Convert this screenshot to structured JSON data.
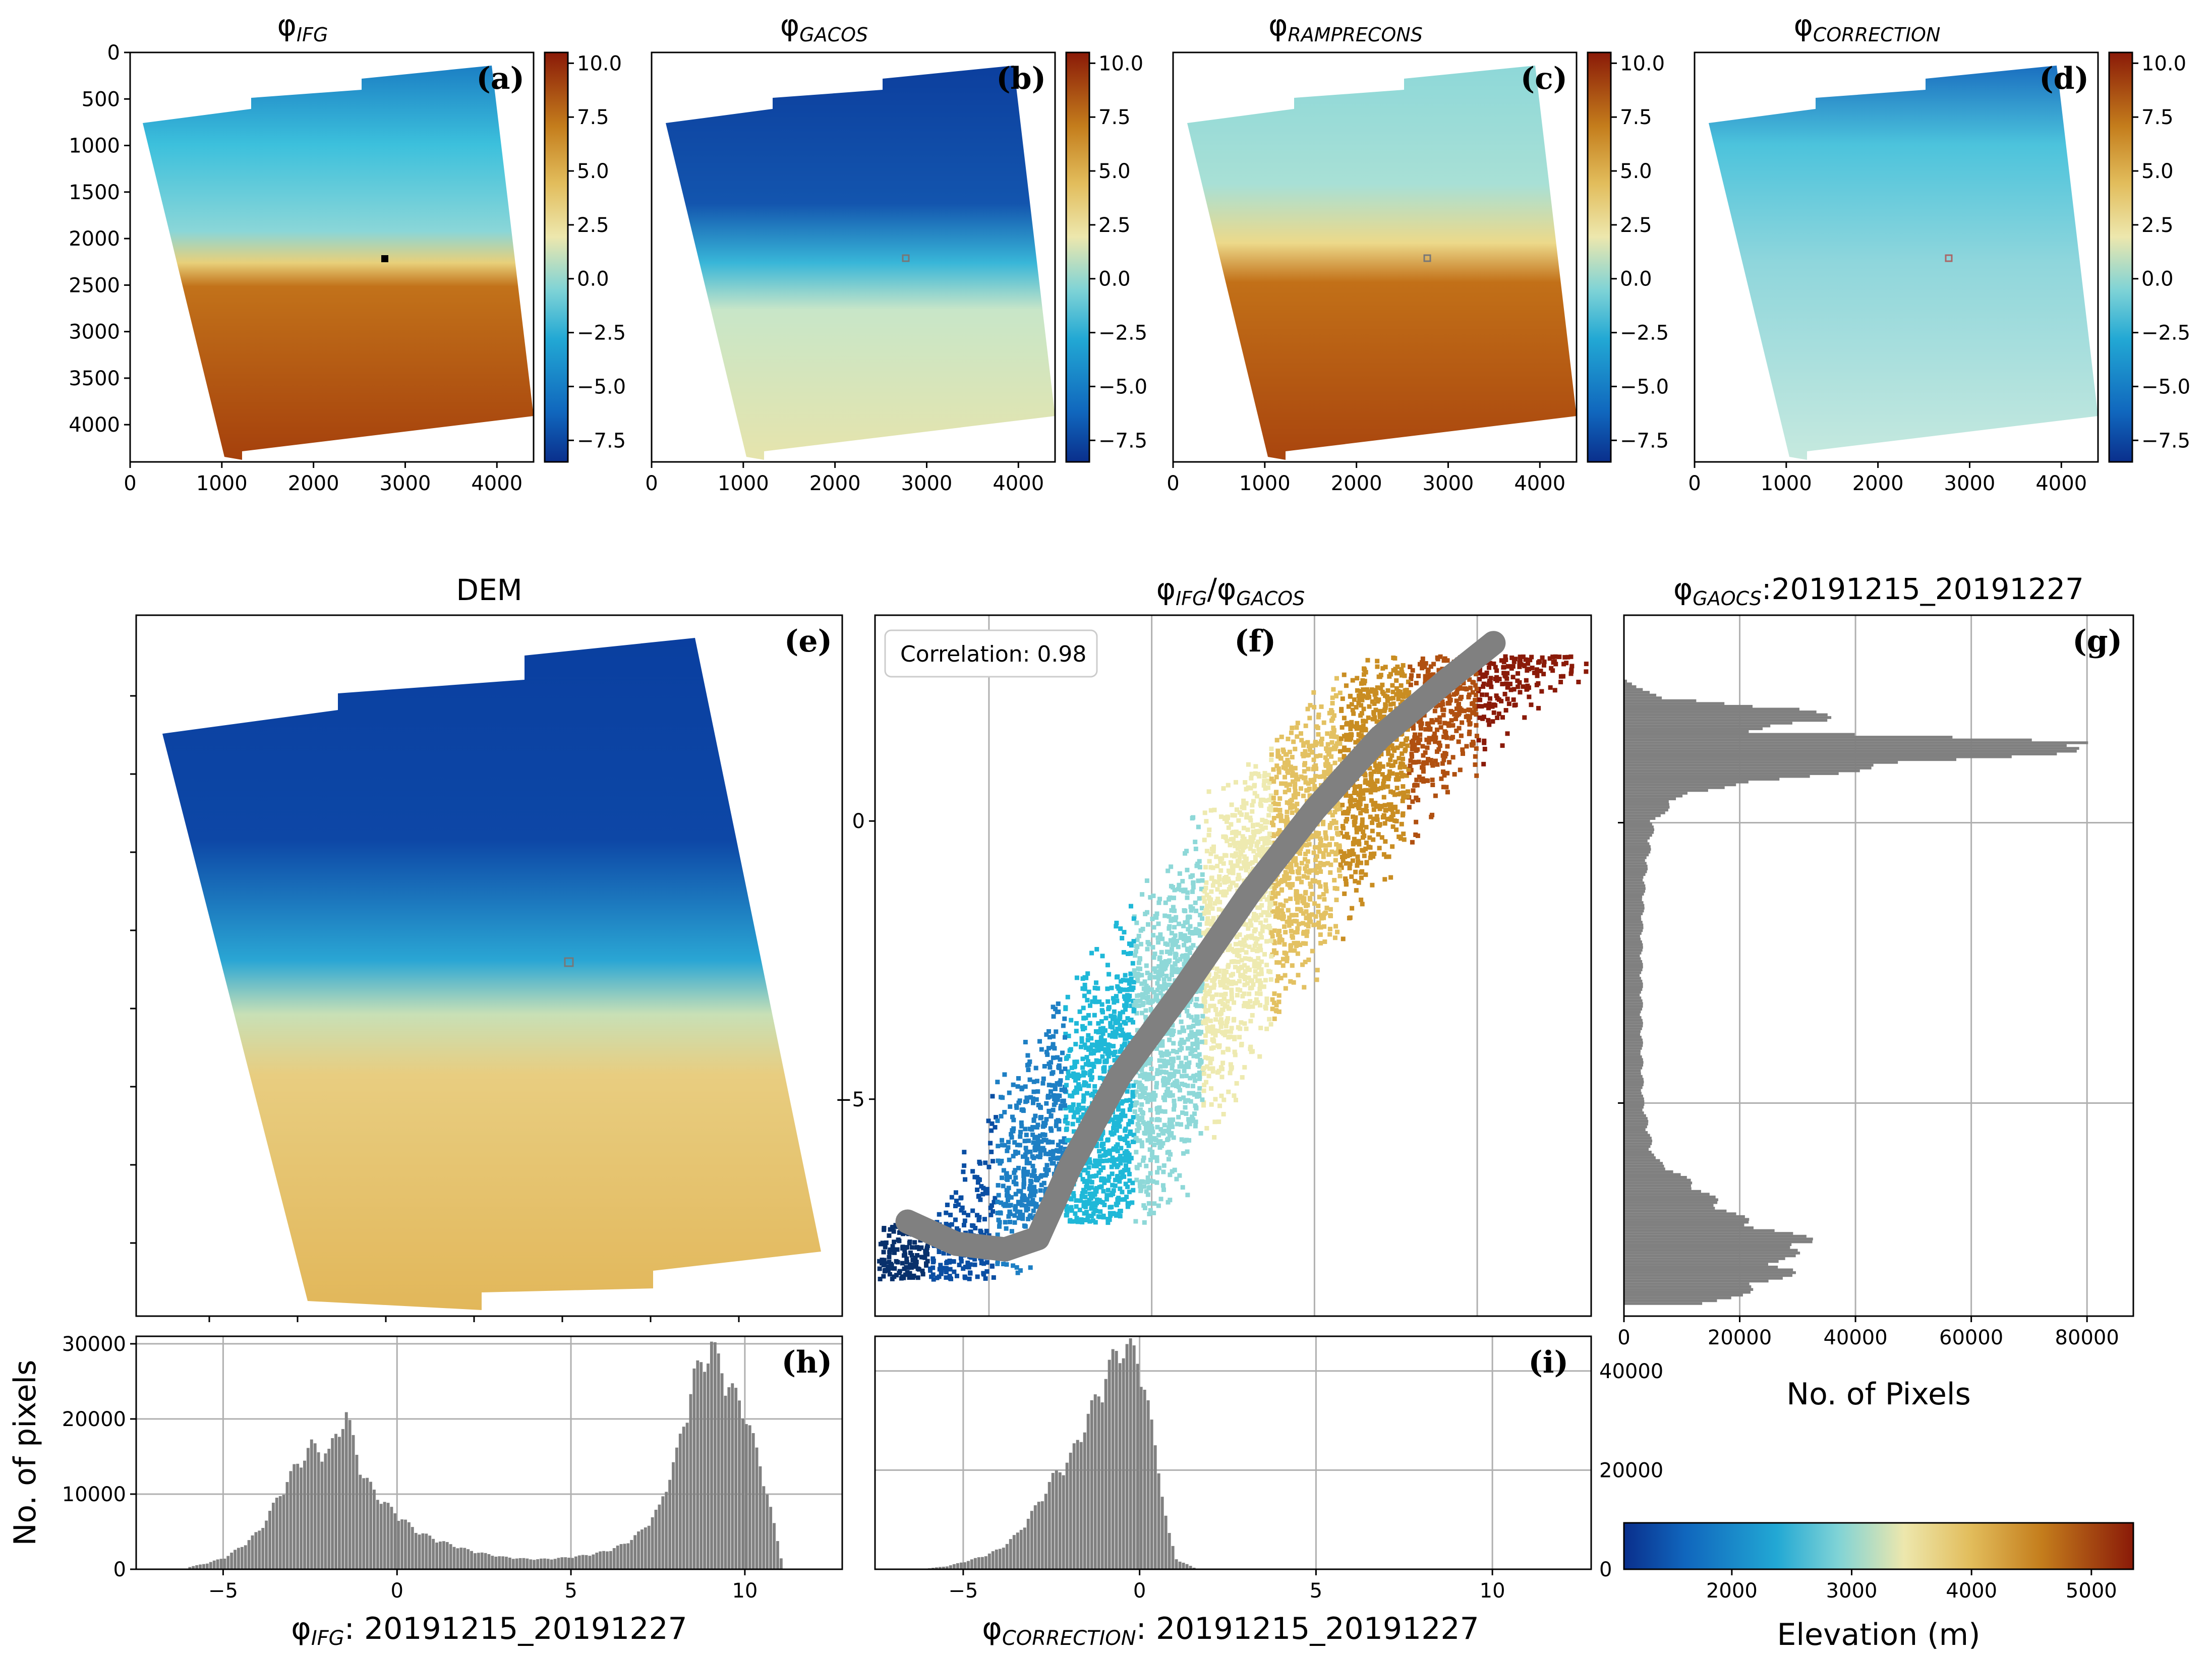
{
  "colors": {
    "colormap": [
      "#08306b",
      "#0a4ea3",
      "#1e7fc4",
      "#1fb8d8",
      "#8ed8d8",
      "#eeeab0",
      "#e3c162",
      "#c98d22",
      "#b05010",
      "#8a1a08"
    ],
    "dem": [
      "#0a3fa0",
      "#1a6fc0",
      "#2fb5d5",
      "#a8dcc8",
      "#efe2a0",
      "#e1b960",
      "#c88a2e",
      "#8a2a10"
    ],
    "bar": "#808080",
    "scatter_line": "#808080"
  },
  "panels_top": [
    {
      "id": "a",
      "title": "φ",
      "sub": "IFG",
      "label": "(a)"
    },
    {
      "id": "b",
      "title": "φ",
      "sub": "GACOS",
      "label": "(b)"
    },
    {
      "id": "c",
      "title": "φ",
      "sub": "RAMPRECONS",
      "label": "(c)"
    },
    {
      "id": "d",
      "title": "φ",
      "sub": "CORRECTION",
      "label": "(d)"
    }
  ],
  "map_axes": {
    "x_ticks": [
      "0",
      "1000",
      "2000",
      "3000",
      "4000"
    ],
    "y_ticks": [
      "0",
      "500",
      "1000",
      "1500",
      "2000",
      "2500",
      "3000",
      "3500",
      "4000"
    ],
    "xlim": [
      0,
      4400
    ],
    "ylim": [
      0,
      4400
    ]
  },
  "colorbar": {
    "ticks": [
      "10.0",
      "7.5",
      "5.0",
      "2.5",
      "0.0",
      "−2.5",
      "−5.0",
      "−7.5"
    ],
    "range": [
      -8.5,
      10.5
    ]
  },
  "dem_panel": {
    "title": "DEM",
    "label": "(e)"
  },
  "scatter_panel": {
    "title": "φ",
    "title_sub1": "IFG",
    "title_sep": "/φ",
    "title_sub2": "GACOS",
    "label": "(f)",
    "correlation_text": "Correlation: 0.98",
    "y_ticks": [
      "0",
      "−5"
    ],
    "x_ticks": [
      "−5",
      "0",
      "5",
      "10"
    ]
  },
  "hist_g": {
    "title": "φ",
    "title_sub": "GAOCS",
    "title_rest": ":20191215_20191227",
    "label": "(g)",
    "x_ticks": [
      "0",
      "20000",
      "40000",
      "60000",
      "80000"
    ],
    "xlabel": "No. of Pixels"
  },
  "hist_h": {
    "label": "(h)",
    "y_ticks": [
      "0",
      "10000",
      "20000",
      "30000"
    ],
    "x_ticks": [
      "−5",
      "0",
      "5",
      "10"
    ],
    "ylabel": "No. of pixels",
    "xlabel": "φ",
    "xlabel_sub": "IFG",
    "xlabel_rest": ": 20191215_20191227"
  },
  "hist_i": {
    "label": "(i)",
    "y_ticks": [
      "0",
      "20000",
      "40000"
    ],
    "x_ticks": [
      "−5",
      "0",
      "5",
      "10"
    ],
    "xlabel": "φ",
    "xlabel_sub": "CORRECTION",
    "xlabel_rest": ": 20191215_20191227"
  },
  "elevation_bar": {
    "ticks": [
      "2000",
      "3000",
      "4000",
      "5000"
    ],
    "label": "Elevation (m)",
    "range": [
      1100,
      5350
    ]
  },
  "chart_data": [
    {
      "type": "histogram",
      "id": "h",
      "title": "",
      "xlabel": "φIFG: 20191215_20191227",
      "ylabel": "No. of pixels",
      "xlim": [
        -7.5,
        12.8
      ],
      "ylim": [
        0,
        31000
      ],
      "x": [
        -6,
        -5.5,
        -5,
        -4.5,
        -4,
        -3.5,
        -3,
        -2.5,
        -2,
        -1.75,
        -1.5,
        -1.25,
        -1,
        -0.5,
        0,
        0.5,
        1,
        1.5,
        2,
        2.5,
        3,
        3.5,
        4,
        4.5,
        5,
        5.5,
        6,
        6.5,
        7,
        7.5,
        8,
        8.5,
        9,
        9.5,
        10,
        10.5,
        11
      ],
      "values": [
        300,
        800,
        1500,
        3000,
        5000,
        9000,
        13000,
        16000,
        15000,
        18000,
        20000,
        16000,
        12000,
        9000,
        7000,
        5000,
        4000,
        3200,
        2500,
        2000,
        1600,
        1400,
        1300,
        1400,
        1600,
        1900,
        2400,
        3300,
        5000,
        8000,
        15000,
        25000,
        29000,
        24000,
        20000,
        12000,
        1500
      ]
    },
    {
      "type": "histogram",
      "id": "i",
      "title": "",
      "xlabel": "φCORRECTION: 20191215_20191227",
      "ylabel": "",
      "xlim": [
        -7.5,
        12.8
      ],
      "ylim": [
        0,
        47000
      ],
      "x": [
        -6,
        -5.5,
        -5,
        -4.5,
        -4,
        -3.5,
        -3,
        -2.5,
        -2,
        -1.5,
        -1.25,
        -1,
        -0.75,
        -0.5,
        -0.25,
        0,
        0.25,
        0.5,
        0.75,
        1,
        1.5
      ],
      "values": [
        200,
        600,
        1500,
        2500,
        4000,
        7000,
        12000,
        18000,
        22000,
        30000,
        34000,
        38000,
        42000,
        44000,
        43000,
        40000,
        30000,
        20000,
        8000,
        2000,
        300
      ]
    },
    {
      "type": "histogram",
      "id": "g",
      "orientation": "horizontal",
      "title": "φGAOCS:20191215_20191227",
      "xlabel": "No. of Pixels",
      "xlim": [
        0,
        88000
      ],
      "ylim": [
        -8.8,
        3.7
      ],
      "y": [
        2.5,
        2.2,
        2.0,
        1.8,
        1.6,
        1.4,
        1.2,
        1.0,
        0.8,
        0.5,
        0.0,
        -1.0,
        -2.0,
        -3.0,
        -4.0,
        -5.0,
        -6.0,
        -6.5,
        -7.0,
        -7.2,
        -7.5,
        -7.8,
        -8.0,
        -8.2,
        -8.4,
        -8.6
      ],
      "values": [
        500,
        6000,
        30000,
        34000,
        20000,
        85000,
        68000,
        45000,
        30000,
        10000,
        5000,
        3500,
        3000,
        3000,
        3000,
        3200,
        5000,
        12000,
        18000,
        22000,
        32000,
        26000,
        28000,
        25000,
        20000,
        15000
      ]
    },
    {
      "type": "scatter",
      "id": "f",
      "title": "φIFG/φGACOS",
      "annotation": "Correlation: 0.98",
      "xlim": [
        -8.5,
        13.5
      ],
      "ylim": [
        -8.9,
        3.7
      ],
      "median_line": {
        "x": [
          -7.5,
          -6,
          -4.5,
          -3.5,
          -2.5,
          -1,
          1,
          3,
          5,
          7,
          9,
          10.5
        ],
        "y": [
          -7.2,
          -7.6,
          -7.7,
          -7.5,
          -6.2,
          -4.6,
          -3.0,
          -1.3,
          0.2,
          1.5,
          2.5,
          3.2
        ]
      },
      "point_count_approx": 200000
    }
  ]
}
